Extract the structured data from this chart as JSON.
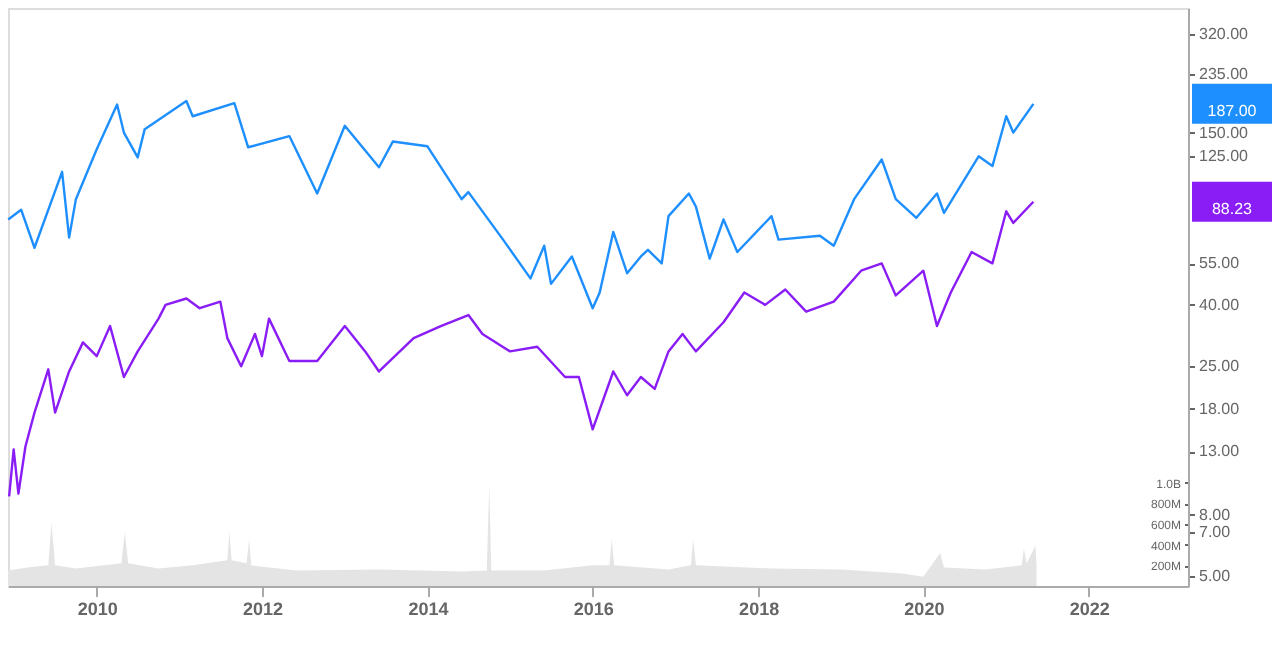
{
  "chart_data": {
    "type": "line",
    "log": "y",
    "grid": false,
    "xlim": [
      "2008-12-05",
      "2023-03-15"
    ],
    "xticks": [
      "2010",
      "2012",
      "2014",
      "2016",
      "2018",
      "2020",
      "2022"
    ],
    "ylim": [
      4.63,
      390
    ],
    "yticks": [
      {
        "value": 5,
        "label": "5.00"
      },
      {
        "value": 7,
        "label": "7.00"
      },
      {
        "value": 8,
        "label": "8.00"
      },
      {
        "value": 13,
        "label": "13.00"
      },
      {
        "value": 18,
        "label": "18.00"
      },
      {
        "value": 25,
        "label": "25.00"
      },
      {
        "value": 40,
        "label": "40.00"
      },
      {
        "value": 55,
        "label": "55.00"
      },
      {
        "value": 125,
        "label": "125.00"
      },
      {
        "value": 150,
        "label": "150.00"
      },
      {
        "value": 235,
        "label": "235.00"
      },
      {
        "value": 320,
        "label": "320.00"
      }
    ],
    "y2lim": [
      0,
      5600000000
    ],
    "y2ticks": [
      {
        "value": 200000000,
        "label": "200M"
      },
      {
        "value": 400000000,
        "label": "400M"
      },
      {
        "value": 600000000,
        "label": "600M"
      },
      {
        "value": 800000000,
        "label": "800M"
      },
      {
        "value": 1000000000,
        "label": "1.0B"
      }
    ],
    "series": [
      {
        "type": "area",
        "axis": "y2",
        "color": "#e4e4e4",
        "x": [
          "2008-12-05",
          "2009-03",
          "2009-06-01",
          "2009-06-15",
          "2009-07-01",
          "2009-10",
          "2010-04-20",
          "2010-05-05",
          "2010-05-20",
          "2010-10",
          "2011-03",
          "2011-08-01",
          "2011-08-10",
          "2011-08-20",
          "2011-10-25",
          "2011-11-05",
          "2011-11-15",
          "2012-06",
          "2013-06",
          "2014-06",
          "2014-09-20",
          "2014-10-01",
          "2014-10-10",
          "2015-06",
          "2016-01",
          "2016-03-15",
          "2016-03-25",
          "2016-04-05",
          "2016-12",
          "2017-03-10",
          "2017-03-20",
          "2017-04-01",
          "2018-03",
          "2019-01",
          "2019-10",
          "2020-01",
          "2020-03-15",
          "2020-04",
          "2020-10",
          "2021-03-10",
          "2021-03-20",
          "2021-04-01",
          "2021-05-10",
          "2021-05-15"
        ],
        "values": [
          150000000,
          180000000,
          200000000,
          610000000,
          200000000,
          170000000,
          220000000,
          520000000,
          220000000,
          170000000,
          200000000,
          250000000,
          530000000,
          250000000,
          220000000,
          450000000,
          200000000,
          150000000,
          160000000,
          140000000,
          150000000,
          980000000,
          150000000,
          150000000,
          200000000,
          200000000,
          450000000,
          200000000,
          160000000,
          200000000,
          450000000,
          200000000,
          170000000,
          160000000,
          120000000,
          90000000,
          320000000,
          180000000,
          160000000,
          200000000,
          360000000,
          220000000,
          390000000,
          200000000
        ]
      },
      {
        "color": "#1e8fff",
        "x": [
          "2008-12-06",
          "2009-02",
          "2009-04",
          "2009-08",
          "2009-09",
          "2009-10",
          "2010-01",
          "2010-04",
          "2010-05",
          "2010-07",
          "2010-08",
          "2011-02",
          "2011-03",
          "2011-09",
          "2011-11",
          "2012-05",
          "2012-09",
          "2013-01",
          "2013-06",
          "2013-08",
          "2014-01",
          "2014-06",
          "2014-07",
          "2014-12",
          "2015-04",
          "2015-06",
          "2015-07",
          "2015-10",
          "2016-01",
          "2016-02",
          "2016-04",
          "2016-06",
          "2016-08",
          "2016-09",
          "2016-11",
          "2016-12",
          "2017-03",
          "2017-04",
          "2017-06",
          "2017-08",
          "2017-10",
          "2018-03",
          "2018-04",
          "2018-10",
          "2018-12",
          "2019-03",
          "2019-07",
          "2019-09",
          "2019-12",
          "2020-03",
          "2020-04",
          "2020-09",
          "2020-11",
          "2021-01",
          "2021-02",
          "2021-05"
        ],
        "values": [
          77,
          83,
          62,
          111,
          67,
          90,
          132,
          186,
          150,
          124,
          154,
          191,
          170,
          188,
          134,
          146,
          94,
          158,
          115,
          140,
          135,
          90,
          95,
          66,
          49,
          63,
          47,
          58,
          39,
          44,
          70,
          51,
          58,
          61,
          55,
          79,
          94,
          85,
          57,
          77,
          60,
          79,
          66,
          68,
          63,
          90,
          122,
          90,
          78,
          94,
          81,
          125,
          116,
          170,
          150,
          187
        ]
      },
      {
        "color": "#8a1cf5",
        "x": [
          "2008-12-10",
          "2008-12-30",
          "2009-01-20",
          "2009-02-20",
          "2009-04",
          "2009-06",
          "2009-07",
          "2009-09",
          "2009-11",
          "2010-01",
          "2010-03",
          "2010-05",
          "2010-07",
          "2010-10",
          "2010-11",
          "2011-02",
          "2011-04",
          "2011-07",
          "2011-08",
          "2011-10",
          "2011-12",
          "2012-01",
          "2012-02",
          "2012-05",
          "2012-09",
          "2013-01",
          "2013-04",
          "2013-06",
          "2013-11",
          "2014-03",
          "2014-07",
          "2014-09",
          "2015-01",
          "2015-05",
          "2015-09",
          "2015-11",
          "2016-01",
          "2016-04",
          "2016-06",
          "2016-08",
          "2016-10",
          "2016-12",
          "2017-02",
          "2017-04",
          "2017-08",
          "2017-11",
          "2018-02",
          "2018-05",
          "2018-08",
          "2018-12",
          "2019-04",
          "2019-07",
          "2019-09",
          "2020-01",
          "2020-03",
          "2020-05",
          "2020-08",
          "2020-11",
          "2021-01",
          "2021-02",
          "2021-05"
        ],
        "values": [
          9.2,
          13.2,
          9.4,
          13.5,
          17.5,
          24.4,
          17.5,
          24,
          30,
          27,
          34,
          23,
          28,
          36,
          40,
          42,
          39,
          41,
          31,
          25,
          32,
          27,
          36,
          26,
          26,
          34,
          28,
          24,
          31,
          34,
          37,
          32,
          28,
          29,
          23,
          23,
          15.4,
          24,
          20,
          23,
          21,
          28,
          32,
          28,
          35,
          44,
          40,
          45,
          38,
          41,
          52,
          55,
          43,
          52,
          34,
          44,
          60,
          55,
          82,
          75,
          88.23
        ]
      }
    ],
    "annotations": [
      "187.00",
      "88.23"
    ]
  }
}
